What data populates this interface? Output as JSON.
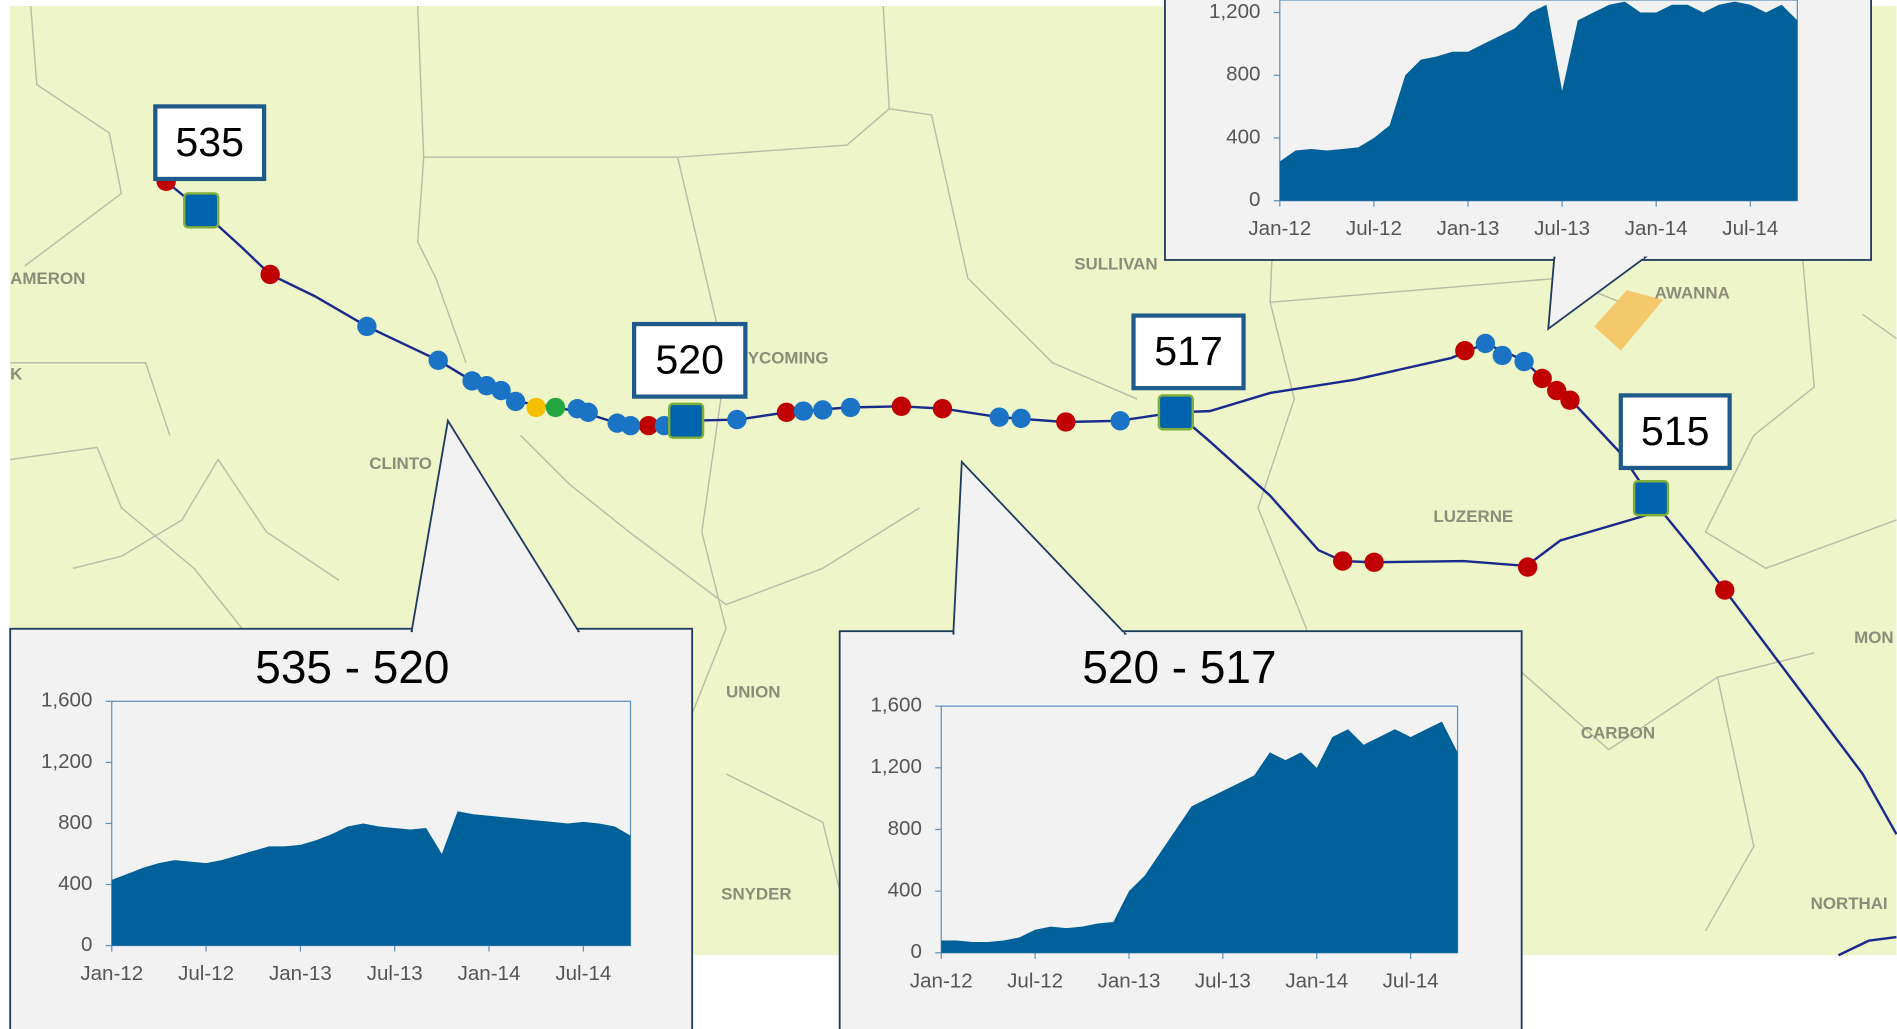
{
  "map": {
    "county_labels": [
      "AMERON",
      "K",
      "CLINTO",
      "YCOMING",
      "SULLIVAN",
      "AWANNA",
      "LUZERNE",
      "UNION",
      "CARBON",
      "SNYDER",
      "MON",
      "NORTHAI"
    ],
    "stations": [
      "535",
      "520",
      "517",
      "515"
    ]
  },
  "chart_data": [
    {
      "type": "area",
      "title": "535 - 520",
      "categories": [
        "Jan-12",
        null,
        null,
        null,
        null,
        null,
        "Jul-12",
        null,
        null,
        null,
        null,
        null,
        "Jan-13",
        null,
        null,
        null,
        null,
        null,
        "Jul-13",
        null,
        null,
        null,
        null,
        null,
        "Jan-14",
        null,
        null,
        null,
        null,
        null,
        "Jul-14",
        null,
        null,
        null
      ],
      "values": [
        430,
        470,
        510,
        540,
        560,
        550,
        540,
        560,
        590,
        620,
        650,
        650,
        660,
        690,
        730,
        780,
        800,
        780,
        770,
        760,
        770,
        600,
        880,
        860,
        850,
        840,
        830,
        820,
        810,
        800,
        810,
        800,
        780,
        720
      ],
      "color": "#00609a",
      "ylim": [
        0,
        1600
      ],
      "yticks": [
        0,
        400,
        800,
        {
          "value": 1200,
          "label": "1,200"
        },
        {
          "value": 1600,
          "label": "1,600"
        }
      ]
    },
    {
      "type": "area",
      "title": "520 - 517",
      "categories": [
        "Jan-12",
        null,
        null,
        null,
        null,
        null,
        "Jul-12",
        null,
        null,
        null,
        null,
        null,
        "Jan-13",
        null,
        null,
        null,
        null,
        null,
        "Jul-13",
        null,
        null,
        null,
        null,
        null,
        "Jan-14",
        null,
        null,
        null,
        null,
        null,
        "Jul-14",
        null,
        null,
        null
      ],
      "values": [
        80,
        80,
        70,
        70,
        80,
        100,
        150,
        170,
        160,
        170,
        190,
        200,
        400,
        500,
        650,
        800,
        950,
        1000,
        1050,
        1100,
        1150,
        1300,
        1250,
        1300,
        1200,
        1400,
        1450,
        1350,
        1400,
        1450,
        1400,
        1450,
        1500,
        1300
      ],
      "color": "#00609a",
      "ylim": [
        0,
        1600
      ],
      "yticks": [
        0,
        400,
        800,
        {
          "value": 1200,
          "label": "1,200"
        },
        {
          "value": 1600,
          "label": "1,600"
        }
      ]
    },
    {
      "type": "area",
      "categories": [
        "Jan-12",
        null,
        null,
        null,
        null,
        null,
        "Jul-12",
        null,
        null,
        null,
        null,
        null,
        "Jan-13",
        null,
        null,
        null,
        null,
        null,
        "Jul-13",
        null,
        null,
        null,
        null,
        null,
        "Jan-14",
        null,
        null,
        null,
        null,
        null,
        "Jul-14",
        null,
        null,
        null
      ],
      "values": [
        250,
        320,
        330,
        320,
        330,
        340,
        400,
        480,
        800,
        900,
        920,
        950,
        950,
        1000,
        1050,
        1100,
        1200,
        1250,
        700,
        1150,
        1200,
        1250,
        1270,
        1200,
        1200,
        1250,
        1250,
        1200,
        1250,
        1270,
        1250,
        1200,
        1250,
        1150
      ],
      "color": "#00609a",
      "ylim": [
        0,
        1280
      ],
      "yticks": [
        0,
        400,
        800,
        {
          "value": 1200,
          "label": "1,200"
        }
      ]
    }
  ]
}
